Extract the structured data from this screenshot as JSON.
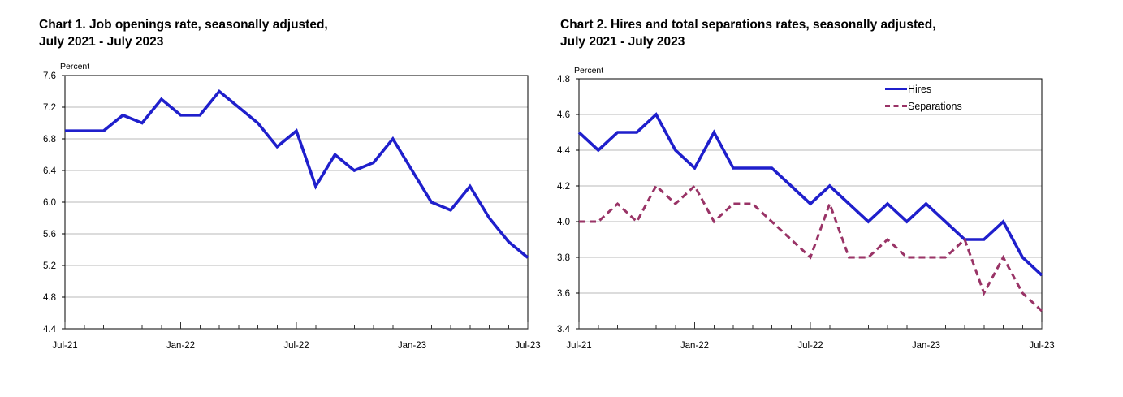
{
  "page_background": "#ffffff",
  "chart_data": [
    {
      "type": "line",
      "title_line1": "Chart 1. Job openings rate, seasonally adjusted,",
      "title_line2": "July 2021 - July 2023",
      "unit_label": "Percent",
      "ylim": [
        4.4,
        7.6
      ],
      "ystep": 0.4,
      "grid": true,
      "x_tick_labels": [
        "Jul-21",
        "Jan-22",
        "Jul-22",
        "Jan-23",
        "Jul-23"
      ],
      "x_tick_positions": [
        0,
        6,
        12,
        18,
        24
      ],
      "months": [
        "Jul-21",
        "Aug-21",
        "Sep-21",
        "Oct-21",
        "Nov-21",
        "Dec-21",
        "Jan-22",
        "Feb-22",
        "Mar-22",
        "Apr-22",
        "May-22",
        "Jun-22",
        "Jul-22",
        "Aug-22",
        "Sep-22",
        "Oct-22",
        "Nov-22",
        "Dec-22",
        "Jan-23",
        "Feb-23",
        "Mar-23",
        "Apr-23",
        "May-23",
        "Jun-23",
        "Jul-23"
      ],
      "series": [
        {
          "name": "Job openings rate",
          "color": "#1f1fcc",
          "dash": "solid",
          "values": [
            6.9,
            6.9,
            6.9,
            7.1,
            7.0,
            7.3,
            7.1,
            7.1,
            7.4,
            7.2,
            7.0,
            6.7,
            6.9,
            6.2,
            6.6,
            6.4,
            6.5,
            6.8,
            6.4,
            6.0,
            5.9,
            6.2,
            5.8,
            5.5,
            5.3
          ]
        }
      ]
    },
    {
      "type": "line",
      "title_line1": "Chart 2. Hires and total separations rates, seasonally adjusted,",
      "title_line2": "July 2021 - July 2023",
      "unit_label": "Percent",
      "ylim": [
        3.4,
        4.8
      ],
      "ystep": 0.2,
      "grid": true,
      "legend_position": "top-right",
      "x_tick_labels": [
        "Jul-21",
        "Jan-22",
        "Jul-22",
        "Jan-23",
        "Jul-23"
      ],
      "x_tick_positions": [
        0,
        6,
        12,
        18,
        24
      ],
      "months": [
        "Jul-21",
        "Aug-21",
        "Sep-21",
        "Oct-21",
        "Nov-21",
        "Dec-21",
        "Jan-22",
        "Feb-22",
        "Mar-22",
        "Apr-22",
        "May-22",
        "Jun-22",
        "Jul-22",
        "Aug-22",
        "Sep-22",
        "Oct-22",
        "Nov-22",
        "Dec-22",
        "Jan-23",
        "Feb-23",
        "Mar-23",
        "Apr-23",
        "May-23",
        "Jun-23",
        "Jul-23"
      ],
      "series": [
        {
          "name": "Hires",
          "color": "#1f1fcc",
          "dash": "solid",
          "values": [
            4.5,
            4.4,
            4.5,
            4.5,
            4.6,
            4.4,
            4.3,
            4.5,
            4.3,
            4.3,
            4.3,
            4.2,
            4.1,
            4.2,
            4.1,
            4.0,
            4.1,
            4.0,
            4.1,
            4.0,
            3.9,
            3.9,
            4.0,
            3.8,
            3.7
          ]
        },
        {
          "name": "Separations",
          "color": "#993366",
          "dash": "dashed",
          "values": [
            4.0,
            4.0,
            4.1,
            4.0,
            4.2,
            4.1,
            4.2,
            4.0,
            4.1,
            4.1,
            4.0,
            3.9,
            3.8,
            4.1,
            3.8,
            3.8,
            3.9,
            3.8,
            3.8,
            3.8,
            3.9,
            3.6,
            3.8,
            3.6,
            3.5
          ]
        }
      ],
      "colors": {
        "hires": "#1f1fcc",
        "separations": "#993366",
        "gridline": "#b8b8b8",
        "axis": "#000000"
      }
    }
  ]
}
